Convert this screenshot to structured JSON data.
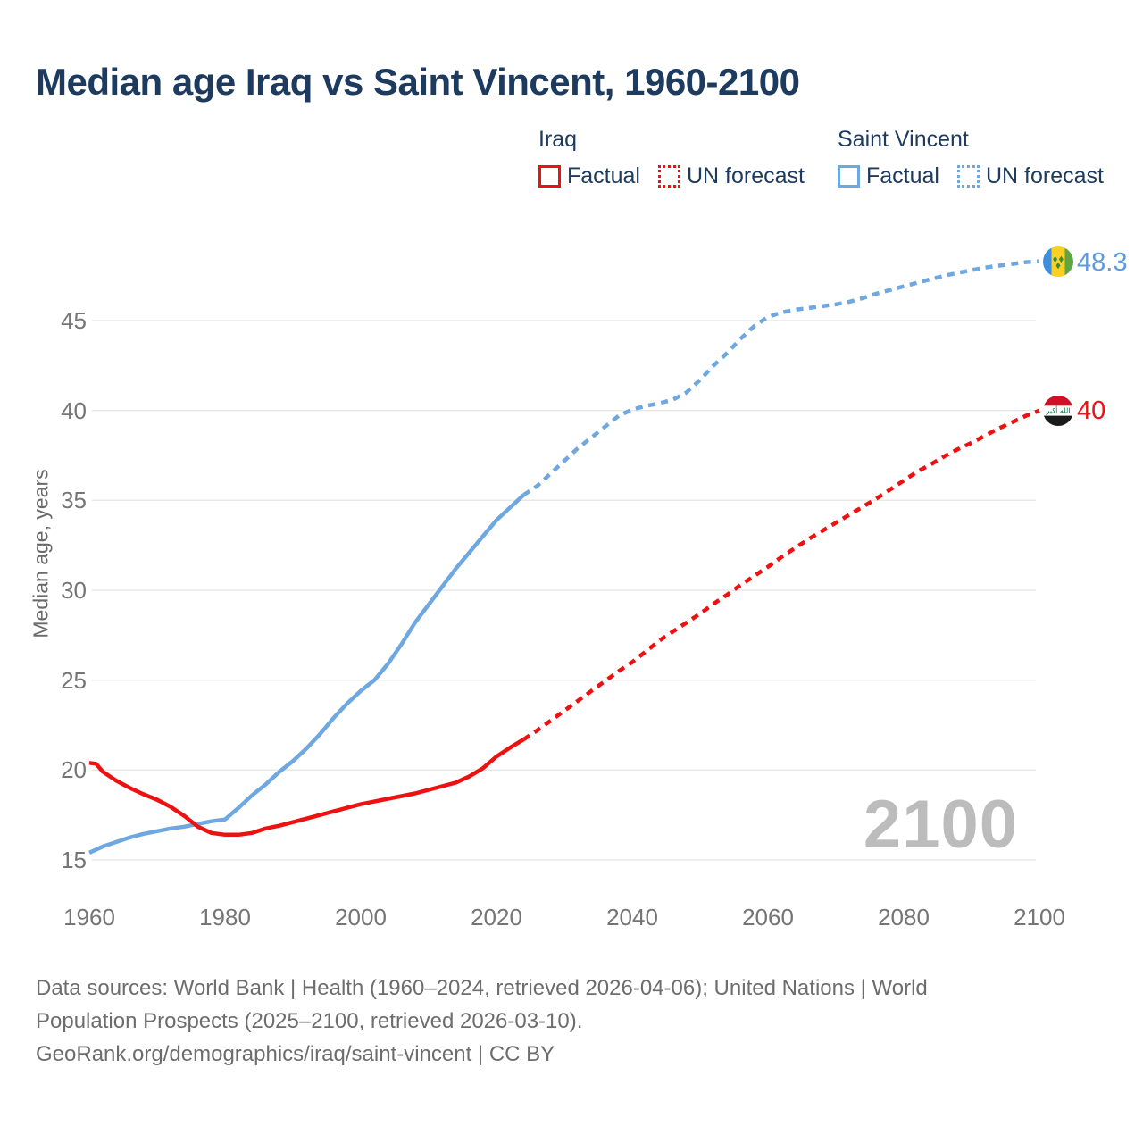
{
  "header": {
    "title": "Median age Iraq vs Saint Vincent, 1960-2100"
  },
  "legend": {
    "groups": [
      {
        "country": "Iraq",
        "color": "#ee1111",
        "items": [
          {
            "label": "Factual",
            "style": "solid"
          },
          {
            "label": "UN forecast",
            "style": "dashed"
          }
        ]
      },
      {
        "country": "Saint Vincent",
        "color": "#6fa8e0",
        "items": [
          {
            "label": "Factual",
            "style": "solid"
          },
          {
            "label": "UN forecast",
            "style": "dashed"
          }
        ]
      }
    ]
  },
  "chart_data": {
    "type": "line",
    "title": "Median age Iraq vs Saint Vincent, 1960-2100",
    "xlabel": "",
    "ylabel": "Median age, years",
    "x_ticks": [
      1960,
      1980,
      2000,
      2020,
      2040,
      2060,
      2080,
      2100
    ],
    "y_ticks": [
      15,
      20,
      25,
      30,
      35,
      40,
      45
    ],
    "xlim": [
      1960,
      2100
    ],
    "ylim": [
      14.5,
      49
    ],
    "grid": "horizontal",
    "legend_position": "top",
    "watermark": "2100",
    "colors": {
      "iraq": "#ee1111",
      "saint_vincent": "#6fa8e0",
      "gridline": "#e8e8e8",
      "tick_text": "#757575"
    },
    "series": [
      {
        "id": "saint-vincent-factual",
        "name": "Saint Vincent Factual",
        "color": "#6fa8e0",
        "style": "solid",
        "points": [
          [
            1960,
            15.4
          ],
          [
            1962,
            15.75
          ],
          [
            1964,
            16.0
          ],
          [
            1966,
            16.25
          ],
          [
            1968,
            16.45
          ],
          [
            1970,
            16.6
          ],
          [
            1972,
            16.75
          ],
          [
            1974,
            16.85
          ],
          [
            1976,
            17.0
          ],
          [
            1978,
            17.15
          ],
          [
            1980,
            17.25
          ],
          [
            1982,
            17.9
          ],
          [
            1984,
            18.6
          ],
          [
            1986,
            19.2
          ],
          [
            1988,
            19.9
          ],
          [
            1990,
            20.5
          ],
          [
            1992,
            21.2
          ],
          [
            1994,
            22.0
          ],
          [
            1996,
            22.9
          ],
          [
            1998,
            23.7
          ],
          [
            2000,
            24.4
          ],
          [
            2001,
            24.7
          ],
          [
            2002,
            25.0
          ],
          [
            2004,
            25.9
          ],
          [
            2006,
            27.0
          ],
          [
            2008,
            28.2
          ],
          [
            2010,
            29.2
          ],
          [
            2012,
            30.2
          ],
          [
            2014,
            31.2
          ],
          [
            2016,
            32.1
          ],
          [
            2018,
            33.0
          ],
          [
            2020,
            33.9
          ],
          [
            2022,
            34.6
          ],
          [
            2024,
            35.3
          ]
        ]
      },
      {
        "id": "saint-vincent-forecast",
        "name": "Saint Vincent UN forecast",
        "color": "#6fa8e0",
        "style": "dashed",
        "points": [
          [
            2024,
            35.3
          ],
          [
            2026,
            35.8
          ],
          [
            2028,
            36.5
          ],
          [
            2030,
            37.2
          ],
          [
            2032,
            37.9
          ],
          [
            2034,
            38.5
          ],
          [
            2036,
            39.1
          ],
          [
            2038,
            39.7
          ],
          [
            2040,
            40.05
          ],
          [
            2042,
            40.25
          ],
          [
            2044,
            40.4
          ],
          [
            2046,
            40.6
          ],
          [
            2048,
            41.0
          ],
          [
            2050,
            41.7
          ],
          [
            2052,
            42.5
          ],
          [
            2054,
            43.2
          ],
          [
            2056,
            44.0
          ],
          [
            2058,
            44.7
          ],
          [
            2060,
            45.2
          ],
          [
            2062,
            45.45
          ],
          [
            2064,
            45.6
          ],
          [
            2066,
            45.7
          ],
          [
            2068,
            45.8
          ],
          [
            2070,
            45.9
          ],
          [
            2072,
            46.05
          ],
          [
            2074,
            46.25
          ],
          [
            2076,
            46.5
          ],
          [
            2078,
            46.7
          ],
          [
            2080,
            46.9
          ],
          [
            2082,
            47.1
          ],
          [
            2084,
            47.3
          ],
          [
            2086,
            47.5
          ],
          [
            2088,
            47.65
          ],
          [
            2090,
            47.8
          ],
          [
            2092,
            47.95
          ],
          [
            2094,
            48.05
          ],
          [
            2096,
            48.15
          ],
          [
            2098,
            48.25
          ],
          [
            2100,
            48.3
          ]
        ]
      },
      {
        "id": "iraq-factual",
        "name": "Iraq Factual",
        "color": "#ee1111",
        "style": "solid",
        "points": [
          [
            1960,
            20.4
          ],
          [
            1961,
            20.35
          ],
          [
            1962,
            19.9
          ],
          [
            1964,
            19.4
          ],
          [
            1966,
            19.0
          ],
          [
            1968,
            18.65
          ],
          [
            1970,
            18.35
          ],
          [
            1972,
            17.95
          ],
          [
            1974,
            17.45
          ],
          [
            1976,
            16.85
          ],
          [
            1978,
            16.5
          ],
          [
            1980,
            16.4
          ],
          [
            1982,
            16.4
          ],
          [
            1984,
            16.5
          ],
          [
            1986,
            16.75
          ],
          [
            1988,
            16.9
          ],
          [
            1990,
            17.1
          ],
          [
            1992,
            17.3
          ],
          [
            1994,
            17.5
          ],
          [
            1996,
            17.7
          ],
          [
            1998,
            17.9
          ],
          [
            2000,
            18.1
          ],
          [
            2002,
            18.25
          ],
          [
            2004,
            18.4
          ],
          [
            2006,
            18.55
          ],
          [
            2008,
            18.7
          ],
          [
            2010,
            18.9
          ],
          [
            2012,
            19.1
          ],
          [
            2014,
            19.3
          ],
          [
            2016,
            19.65
          ],
          [
            2018,
            20.1
          ],
          [
            2020,
            20.75
          ],
          [
            2022,
            21.25
          ],
          [
            2024,
            21.7
          ]
        ]
      },
      {
        "id": "iraq-forecast",
        "name": "Iraq UN forecast",
        "color": "#ee1111",
        "style": "dashed",
        "points": [
          [
            2024,
            21.7
          ],
          [
            2026,
            22.2
          ],
          [
            2028,
            22.75
          ],
          [
            2030,
            23.3
          ],
          [
            2032,
            23.85
          ],
          [
            2034,
            24.4
          ],
          [
            2036,
            24.95
          ],
          [
            2038,
            25.5
          ],
          [
            2040,
            26.0
          ],
          [
            2042,
            26.6
          ],
          [
            2044,
            27.2
          ],
          [
            2046,
            27.7
          ],
          [
            2048,
            28.2
          ],
          [
            2050,
            28.7
          ],
          [
            2052,
            29.25
          ],
          [
            2054,
            29.75
          ],
          [
            2056,
            30.3
          ],
          [
            2058,
            30.8
          ],
          [
            2060,
            31.3
          ],
          [
            2062,
            31.85
          ],
          [
            2064,
            32.35
          ],
          [
            2066,
            32.85
          ],
          [
            2068,
            33.3
          ],
          [
            2070,
            33.75
          ],
          [
            2072,
            34.2
          ],
          [
            2074,
            34.65
          ],
          [
            2076,
            35.1
          ],
          [
            2078,
            35.6
          ],
          [
            2080,
            36.1
          ],
          [
            2082,
            36.6
          ],
          [
            2084,
            37.0
          ],
          [
            2086,
            37.45
          ],
          [
            2088,
            37.85
          ],
          [
            2090,
            38.2
          ],
          [
            2092,
            38.6
          ],
          [
            2094,
            39.0
          ],
          [
            2096,
            39.35
          ],
          [
            2098,
            39.7
          ],
          [
            2100,
            40.0
          ]
        ]
      }
    ],
    "end_labels": [
      {
        "series": "saint-vincent",
        "label": "48.3",
        "value": 48.3,
        "color": "#5d9be0",
        "flag": "saint-vincent-flag"
      },
      {
        "series": "iraq",
        "label": "40",
        "value": 40,
        "color": "#ee1111",
        "flag": "iraq-flag"
      }
    ]
  },
  "footer": {
    "lines": [
      "Data sources: World Bank | Health (1960–2024, retrieved 2026-04-06); United Nations | World",
      "Population Prospects (2025–2100, retrieved 2026-03-10).",
      "GeoRank.org/demographics/iraq/saint-vincent | CC BY"
    ]
  }
}
